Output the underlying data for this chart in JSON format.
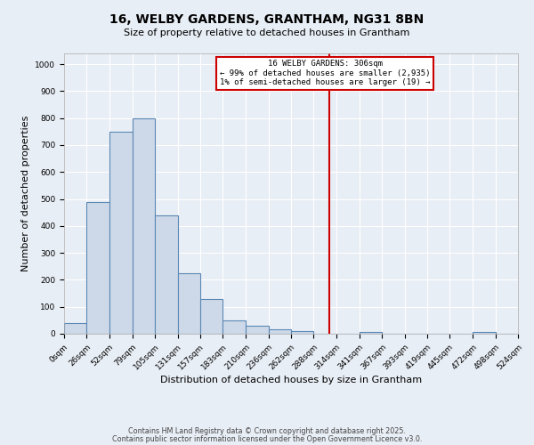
{
  "title1": "16, WELBY GARDENS, GRANTHAM, NG31 8BN",
  "title2": "Size of property relative to detached houses in Grantham",
  "xlabel": "Distribution of detached houses by size in Grantham",
  "ylabel": "Number of detached properties",
  "bin_edges": [
    0,
    26,
    52,
    79,
    105,
    131,
    157,
    183,
    210,
    236,
    262,
    288,
    314,
    341,
    367,
    393,
    419,
    445,
    472,
    498,
    524
  ],
  "bar_heights": [
    40,
    490,
    750,
    800,
    440,
    225,
    130,
    50,
    30,
    15,
    10,
    0,
    0,
    5,
    0,
    0,
    0,
    0,
    5,
    0
  ],
  "bar_facecolor": "#cdd9e8",
  "bar_edgecolor": "#5b88b5",
  "bar_linewidth": 0.8,
  "vline_x": 306,
  "vline_color": "#cc0000",
  "vline_linewidth": 1.5,
  "annotation_title": "16 WELBY GARDENS: 306sqm",
  "annotation_line2": "← 99% of detached houses are smaller (2,935)",
  "annotation_line3": "1% of semi-detached houses are larger (19) →",
  "annotation_box_edgecolor": "#cc0000",
  "annotation_box_facecolor": "#ffffff",
  "annotation_fontsize": 6.5,
  "ylim": [
    0,
    1040
  ],
  "yticks": [
    0,
    100,
    200,
    300,
    400,
    500,
    600,
    700,
    800,
    900,
    1000
  ],
  "bg_color": "#e8eef5",
  "plot_bg_color": "#e8eef5",
  "grid_color": "#ffffff",
  "footer1": "Contains HM Land Registry data © Crown copyright and database right 2025.",
  "footer2": "Contains public sector information licensed under the Open Government Licence v3.0.",
  "title1_fontsize": 10,
  "title2_fontsize": 8,
  "xlabel_fontsize": 8,
  "ylabel_fontsize": 8,
  "tick_fontsize": 6.5,
  "footer_fontsize": 5.8
}
